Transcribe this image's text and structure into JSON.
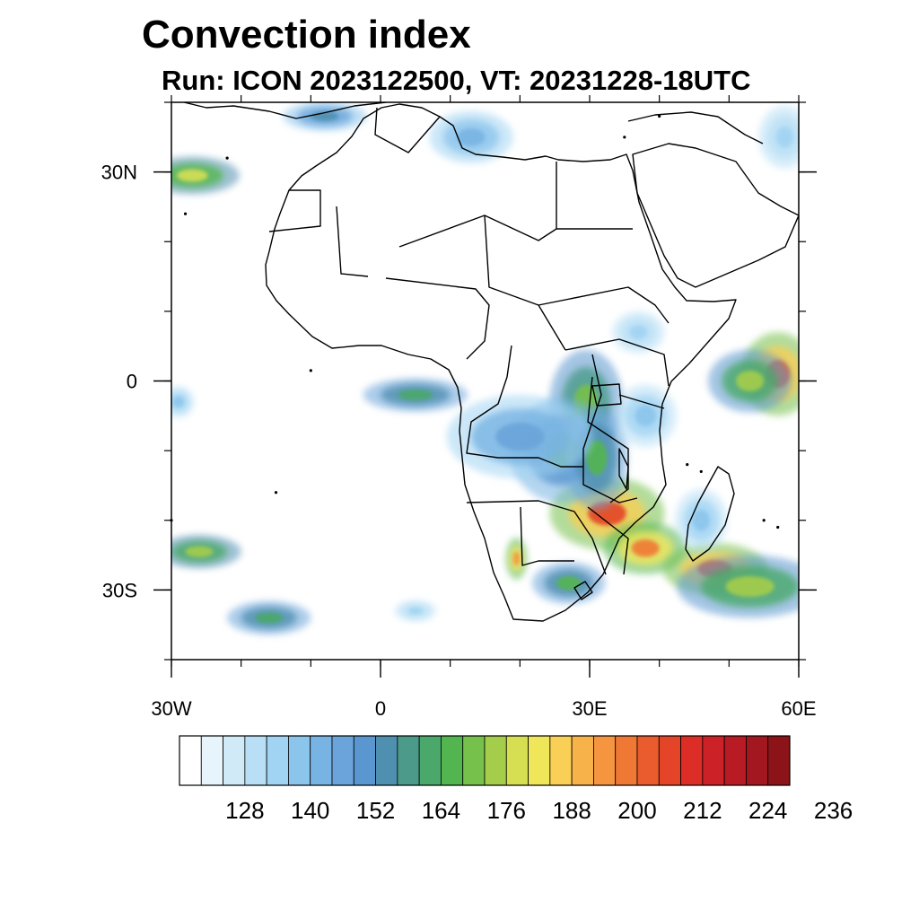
{
  "title": "Convection index",
  "subtitle": "Run: ICON 2023122500,  VT: 20231228-18UTC",
  "map": {
    "lon_range": [
      -30,
      60
    ],
    "lat_range": [
      -40,
      40
    ],
    "x_ticks": [
      {
        "lon": -30,
        "label": "30W"
      },
      {
        "lon": 0,
        "label": "0"
      },
      {
        "lon": 30,
        "label": "30E"
      },
      {
        "lon": 60,
        "label": "60E"
      }
    ],
    "y_ticks": [
      {
        "lat": 30,
        "label": "30N"
      },
      {
        "lat": 0,
        "label": "0"
      },
      {
        "lat": -30,
        "label": "30S"
      }
    ],
    "minor_lon_step": 10,
    "minor_lat_step": 10
  },
  "colorbar": {
    "colors": [
      "#ffffff",
      "#e8f4fc",
      "#d0eaf8",
      "#b8dff5",
      "#a1d4f3",
      "#8cc5ec",
      "#78b4e3",
      "#6aa4da",
      "#5a96cf",
      "#4f8fb0",
      "#4c9b8a",
      "#4aa86a",
      "#52b54f",
      "#76c04c",
      "#a5cd4c",
      "#d6df52",
      "#f0e65a",
      "#f9cf55",
      "#f8b24a",
      "#f59540",
      "#f07835",
      "#ea5c2d",
      "#e44428",
      "#dc2e26",
      "#cc2126",
      "#b81b24",
      "#a31820",
      "#8c1418"
    ],
    "labels": [
      "128",
      "140",
      "152",
      "164",
      "176",
      "188",
      "200",
      "212",
      "224",
      "236"
    ]
  },
  "chart_data": {
    "type": "heatmap",
    "title": "Convection index",
    "subtitle": "Run: ICON 2023122500,  VT: 20231228-18UTC",
    "xlim": [
      -30,
      60
    ],
    "ylim": [
      -40,
      40
    ],
    "value_range": [
      116,
      240
    ],
    "blobs": [
      {
        "lon": 32.5,
        "lat": -19,
        "rlon": 5.5,
        "rlat": 3.5,
        "value": 215
      },
      {
        "lon": 38,
        "lat": -24,
        "rlon": 4,
        "rlat": 2.5,
        "value": 208
      },
      {
        "lon": 48,
        "lat": -27,
        "rlon": 5,
        "rlat": 2.5,
        "value": 212
      },
      {
        "lon": 53,
        "lat": -29.5,
        "rlon": 7,
        "rlat": 3,
        "value": 180
      },
      {
        "lon": 57,
        "lat": 1,
        "rlon": 3.5,
        "rlat": 4,
        "value": 214
      },
      {
        "lon": 53,
        "lat": 0,
        "rlon": 4,
        "rlat": 3,
        "value": 180
      },
      {
        "lon": 29.5,
        "lat": -3,
        "rlon": 3.5,
        "rlat": 5,
        "value": 176
      },
      {
        "lon": 26,
        "lat": -10,
        "rlon": 5,
        "rlat": 5,
        "value": 160
      },
      {
        "lon": 31,
        "lat": -11,
        "rlon": 3,
        "rlat": 5,
        "value": 170
      },
      {
        "lon": 20,
        "lat": -8,
        "rlon": 7,
        "rlat": 4,
        "value": 150
      },
      {
        "lon": 5,
        "lat": -2,
        "rlon": 5,
        "rlat": 1.6,
        "value": 166
      },
      {
        "lon": 27,
        "lat": -29,
        "rlon": 3.5,
        "rlat": 2,
        "value": 170
      },
      {
        "lon": 19.5,
        "lat": -25.5,
        "rlon": 1,
        "rlat": 2,
        "value": 205
      },
      {
        "lon": -27,
        "lat": 29.5,
        "rlon": 4.5,
        "rlat": 1.8,
        "value": 185
      },
      {
        "lon": -26,
        "lat": -24.5,
        "rlon": 4,
        "rlat": 1.6,
        "value": 182
      },
      {
        "lon": -16,
        "lat": -34,
        "rlon": 4,
        "rlat": 1.6,
        "value": 166
      },
      {
        "lon": -8,
        "lat": 38,
        "rlon": 4,
        "rlat": 1.4,
        "value": 158
      },
      {
        "lon": 13,
        "lat": 35,
        "rlon": 4,
        "rlat": 2.5,
        "value": 144
      },
      {
        "lon": 38,
        "lat": -5,
        "rlon": 3,
        "rlat": 3,
        "value": 140
      },
      {
        "lon": 46,
        "lat": -20,
        "rlon": 2.5,
        "rlat": 3,
        "value": 140
      },
      {
        "lon": -29,
        "lat": -3,
        "rlon": 1.5,
        "rlat": 1.5,
        "value": 140
      },
      {
        "lon": 58,
        "lat": 35,
        "rlon": 2.5,
        "rlat": 3,
        "value": 136
      },
      {
        "lon": 5,
        "lat": -33,
        "rlon": 2,
        "rlat": 1,
        "value": 136
      },
      {
        "lon": 37,
        "lat": 7,
        "rlon": 2.5,
        "rlat": 2,
        "value": 136
      }
    ]
  }
}
